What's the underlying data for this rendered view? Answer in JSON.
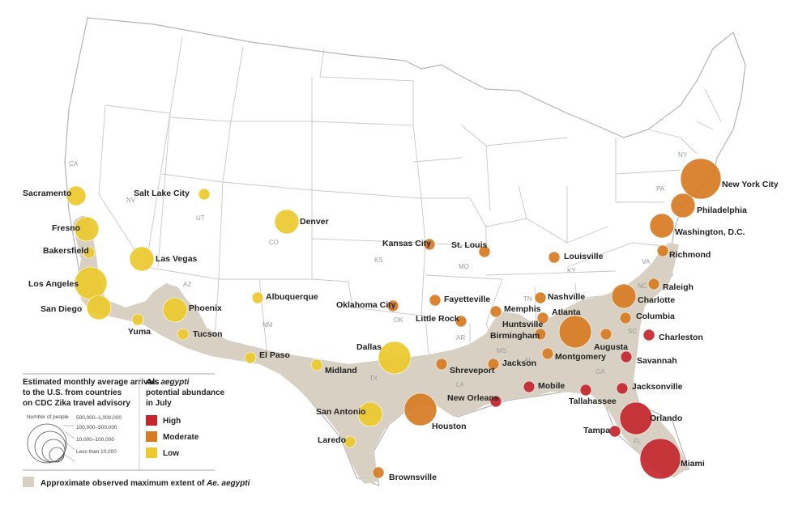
{
  "colors": {
    "high": "#c3262e",
    "moderate": "#d77b23",
    "low": "#ecc92c",
    "extent": "#d8d1c3"
  },
  "state_labels": [
    "CA",
    "NV",
    "UT",
    "AZ",
    "CO",
    "NM",
    "KS",
    "OK",
    "TX",
    "MO",
    "AR",
    "LA",
    "MS",
    "AL",
    "GA",
    "TN",
    "KY",
    "VA",
    "NC",
    "SC",
    "FL",
    "PA",
    "NY"
  ],
  "cities": [
    {
      "name": "Sacramento",
      "level": "low",
      "size": 3
    },
    {
      "name": "Fresno",
      "level": "low",
      "size": 4
    },
    {
      "name": "Bakersfield",
      "level": "low",
      "size": 2
    },
    {
      "name": "Los Angeles",
      "level": "low",
      "size": 5
    },
    {
      "name": "San Diego",
      "level": "low",
      "size": 4
    },
    {
      "name": "Las Vegas",
      "level": "low",
      "size": 4
    },
    {
      "name": "Salt Lake City",
      "level": "low",
      "size": 2
    },
    {
      "name": "Yuma",
      "level": "low",
      "size": 2
    },
    {
      "name": "Phoenix",
      "level": "low",
      "size": 4
    },
    {
      "name": "Tucson",
      "level": "low",
      "size": 2
    },
    {
      "name": "Denver",
      "level": "low",
      "size": 4
    },
    {
      "name": "Albuquerque",
      "level": "low",
      "size": 2
    },
    {
      "name": "El Paso",
      "level": "low",
      "size": 2
    },
    {
      "name": "Midland",
      "level": "low",
      "size": 2
    },
    {
      "name": "Dallas",
      "level": "low",
      "size": 5
    },
    {
      "name": "San Antonio",
      "level": "low",
      "size": 4
    },
    {
      "name": "Laredo",
      "level": "low",
      "size": 2
    },
    {
      "name": "Houston",
      "level": "moderate",
      "size": 5
    },
    {
      "name": "Brownsville",
      "level": "moderate",
      "size": 2
    },
    {
      "name": "Oklahoma City",
      "level": "moderate",
      "size": 2
    },
    {
      "name": "Kansas City",
      "level": "moderate",
      "size": 2
    },
    {
      "name": "St. Louis",
      "level": "moderate",
      "size": 2
    },
    {
      "name": "Fayetteville",
      "level": "moderate",
      "size": 2
    },
    {
      "name": "Little Rock",
      "level": "moderate",
      "size": 2
    },
    {
      "name": "Shreveport",
      "level": "moderate",
      "size": 2
    },
    {
      "name": "Memphis",
      "level": "moderate",
      "size": 2
    },
    {
      "name": "Nashville",
      "level": "moderate",
      "size": 2
    },
    {
      "name": "Huntsville",
      "level": "moderate",
      "size": 2
    },
    {
      "name": "Birmingham",
      "level": "moderate",
      "size": 2
    },
    {
      "name": "Jackson",
      "level": "moderate",
      "size": 2
    },
    {
      "name": "Montgomery",
      "level": "moderate",
      "size": 2
    },
    {
      "name": "Atlanta",
      "level": "moderate",
      "size": 5
    },
    {
      "name": "Augusta",
      "level": "moderate",
      "size": 2
    },
    {
      "name": "Louisville",
      "level": "moderate",
      "size": 2
    },
    {
      "name": "Charlotte",
      "level": "moderate",
      "size": 4
    },
    {
      "name": "Columbia",
      "level": "moderate",
      "size": 2
    },
    {
      "name": "Raleigh",
      "level": "moderate",
      "size": 2
    },
    {
      "name": "Richmond",
      "level": "moderate",
      "size": 2
    },
    {
      "name": "Washington, D.C.",
      "level": "moderate",
      "size": 4
    },
    {
      "name": "Philadelphia",
      "level": "moderate",
      "size": 4
    },
    {
      "name": "New York City",
      "level": "moderate",
      "size": 6
    },
    {
      "name": "Charleston",
      "level": "high",
      "size": 2
    },
    {
      "name": "Savannah",
      "level": "high",
      "size": 2
    },
    {
      "name": "Jacksonville",
      "level": "high",
      "size": 2
    },
    {
      "name": "Orlando",
      "level": "high",
      "size": 5
    },
    {
      "name": "Tampa",
      "level": "high",
      "size": 2
    },
    {
      "name": "Miami",
      "level": "high",
      "size": 6
    },
    {
      "name": "Tallahassee",
      "level": "high",
      "size": 2
    },
    {
      "name": "Mobile",
      "level": "high",
      "size": 2
    },
    {
      "name": "New Orleans",
      "level": "high",
      "size": 2
    }
  ],
  "legend": {
    "arrivals_title_lines": [
      "Estimated monthly average arrivals",
      "to the U.S. from countries",
      "on CDC Zika travel advisory"
    ],
    "number_of_people_label": "Number of people",
    "size_bins": [
      "500,000–1,000,000",
      "100,000–500,000",
      "10,000–100,000",
      "Less than 10,000"
    ],
    "abundance_title_lines": [
      "Ae. aegypti",
      "potential abundance",
      "in July"
    ],
    "levels": [
      {
        "key": "high",
        "label": "High"
      },
      {
        "key": "moderate",
        "label": "Moderate"
      },
      {
        "key": "low",
        "label": "Low"
      }
    ],
    "extent_label_prefix": "Approximate observed maximum extent of ",
    "extent_label_species": "Ae. aegypti"
  }
}
